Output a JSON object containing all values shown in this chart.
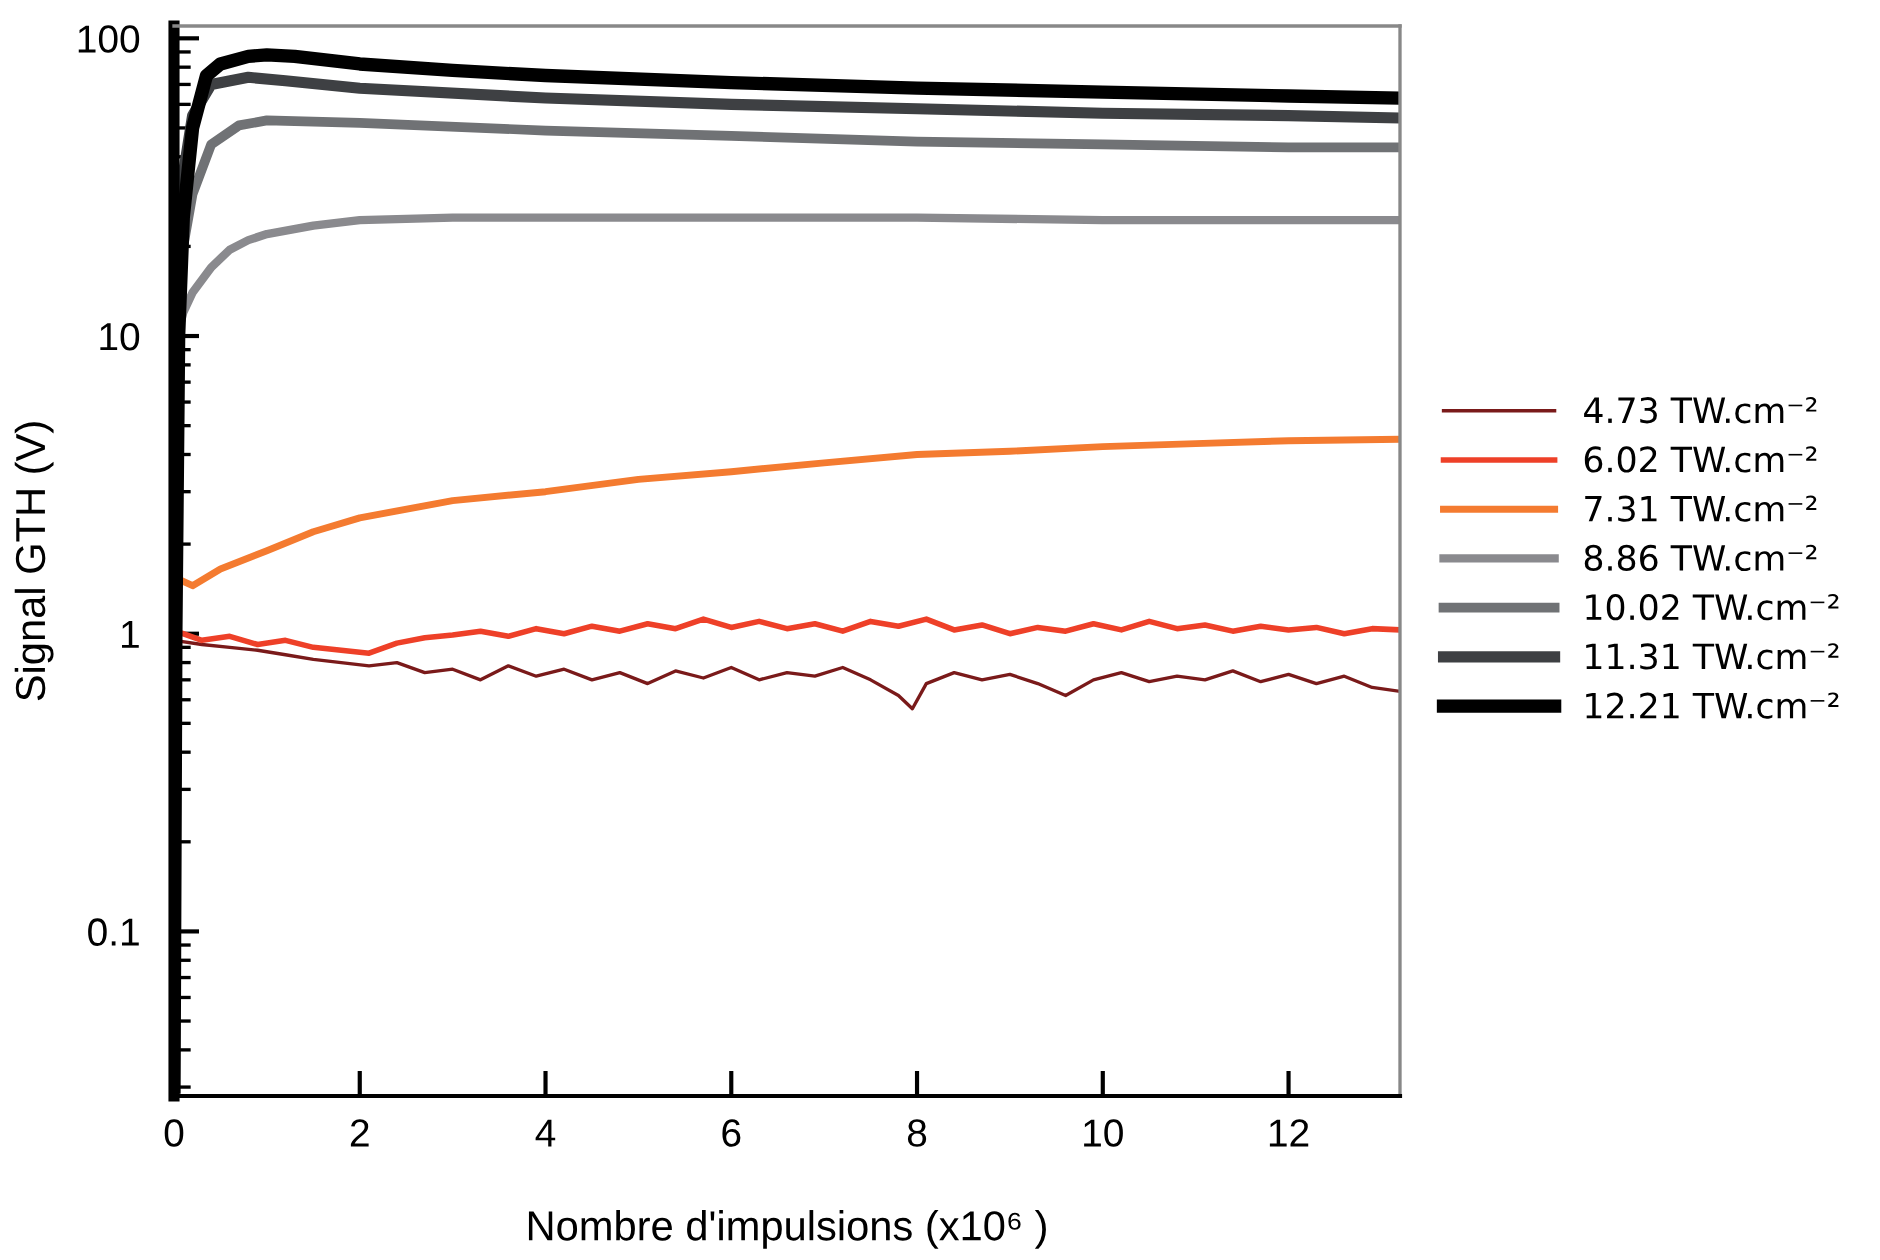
{
  "chart_data": {
    "type": "line",
    "xlabel": "Nombre d'impulsions (x10⁶ )",
    "ylabel": "Signal GTH (V)",
    "log": "y",
    "xlim": [
      0,
      13.2
    ],
    "xticks": [
      0,
      2,
      4,
      6,
      8,
      10,
      12
    ],
    "ylim": [
      0.028,
      110
    ],
    "yticks": [
      0.1,
      1,
      10,
      100
    ],
    "grid": false,
    "legend": "right",
    "marker": "none",
    "line_style": "solid",
    "series": [
      {
        "name": "4.73 TW.cm⁻²",
        "color": "#7a1a1a",
        "x": [
          0,
          0.3,
          0.6,
          0.9,
          1.2,
          1.5,
          1.8,
          2.1,
          2.4,
          2.7,
          3.0,
          3.3,
          3.6,
          3.9,
          4.2,
          4.5,
          4.8,
          5.1,
          5.4,
          5.7,
          6.0,
          6.3,
          6.6,
          6.9,
          7.2,
          7.5,
          7.8,
          7.95,
          8.1,
          8.4,
          8.7,
          9.0,
          9.3,
          9.6,
          9.9,
          10.2,
          10.5,
          10.8,
          11.1,
          11.4,
          11.7,
          12.0,
          12.3,
          12.6,
          12.9,
          13.2
        ],
        "values": [
          0.95,
          0.92,
          0.9,
          0.88,
          0.85,
          0.82,
          0.8,
          0.78,
          0.8,
          0.74,
          0.76,
          0.7,
          0.78,
          0.72,
          0.76,
          0.7,
          0.74,
          0.68,
          0.75,
          0.71,
          0.77,
          0.7,
          0.74,
          0.72,
          0.77,
          0.7,
          0.62,
          0.56,
          0.68,
          0.74,
          0.7,
          0.73,
          0.68,
          0.62,
          0.7,
          0.74,
          0.69,
          0.72,
          0.7,
          0.75,
          0.69,
          0.73,
          0.68,
          0.72,
          0.66,
          0.64
        ]
      },
      {
        "name": "6.02 TW.cm⁻²",
        "color": "#ee4028",
        "x": [
          0.1,
          0.3,
          0.6,
          0.9,
          1.2,
          1.5,
          1.8,
          2.1,
          2.4,
          2.7,
          3.0,
          3.3,
          3.6,
          3.9,
          4.2,
          4.5,
          4.8,
          5.1,
          5.4,
          5.7,
          6.0,
          6.3,
          6.6,
          6.9,
          7.2,
          7.5,
          7.8,
          8.1,
          8.4,
          8.7,
          9.0,
          9.3,
          9.6,
          9.9,
          10.2,
          10.5,
          10.8,
          11.1,
          11.4,
          11.7,
          12.0,
          12.3,
          12.6,
          12.9,
          13.2
        ],
        "values": [
          1.0,
          0.95,
          0.98,
          0.92,
          0.95,
          0.9,
          0.88,
          0.86,
          0.93,
          0.97,
          0.99,
          1.02,
          0.98,
          1.04,
          1.0,
          1.06,
          1.02,
          1.08,
          1.04,
          1.12,
          1.05,
          1.1,
          1.04,
          1.08,
          1.02,
          1.1,
          1.06,
          1.12,
          1.03,
          1.07,
          1.0,
          1.05,
          1.02,
          1.08,
          1.03,
          1.1,
          1.04,
          1.07,
          1.02,
          1.06,
          1.03,
          1.05,
          1.0,
          1.04,
          1.03
        ]
      },
      {
        "name": "7.31 TW.cm⁻²",
        "color": "#f47b30",
        "x": [
          0,
          0.2,
          0.5,
          1,
          1.5,
          2,
          3,
          4,
          5,
          6,
          7,
          8,
          9,
          10,
          11,
          12,
          13.2
        ],
        "values": [
          1.55,
          1.45,
          1.65,
          1.9,
          2.2,
          2.45,
          2.8,
          3.0,
          3.3,
          3.5,
          3.75,
          4.0,
          4.1,
          4.25,
          4.35,
          4.45,
          4.5
        ]
      },
      {
        "name": "8.86 TW.cm⁻²",
        "color": "#8a8a8e",
        "x": [
          0,
          0.1,
          0.2,
          0.4,
          0.6,
          0.8,
          1,
          1.5,
          2,
          3,
          5,
          8,
          10,
          13.2
        ],
        "values": [
          9,
          12,
          14,
          17,
          19.5,
          21,
          22,
          23.5,
          24.5,
          25,
          25,
          25,
          24.5,
          24.5
        ]
      },
      {
        "name": "10.02 TW.cm⁻²",
        "color": "#707275",
        "x": [
          0,
          0.1,
          0.2,
          0.4,
          0.7,
          1,
          2,
          4,
          6,
          8,
          10,
          12,
          13.2
        ],
        "values": [
          10,
          20,
          30,
          44,
          51,
          53,
          52,
          49,
          47,
          45,
          44,
          43,
          43
        ]
      },
      {
        "name": "11.31 TW.cm⁻²",
        "color": "#3e4043",
        "x": [
          0,
          0.05,
          0.1,
          0.2,
          0.4,
          0.8,
          1.2,
          2,
          4,
          6,
          8,
          10,
          12,
          13.2
        ],
        "values": [
          10,
          20,
          35,
          55,
          70,
          74,
          72,
          68,
          63,
          60,
          58,
          56,
          55,
          54
        ]
      },
      {
        "name": "12.21 TW.cm⁻²",
        "color": "#000000",
        "x": [
          0,
          0.02,
          0.05,
          0.1,
          0.2,
          0.35,
          0.5,
          0.8,
          1.0,
          1.3,
          2,
          3,
          4,
          6,
          8,
          10,
          12,
          13.2
        ],
        "values": [
          0.03,
          1,
          10,
          25,
          50,
          75,
          82,
          87,
          88,
          87,
          82,
          78,
          75,
          71,
          68,
          66,
          64,
          63
        ]
      }
    ]
  }
}
